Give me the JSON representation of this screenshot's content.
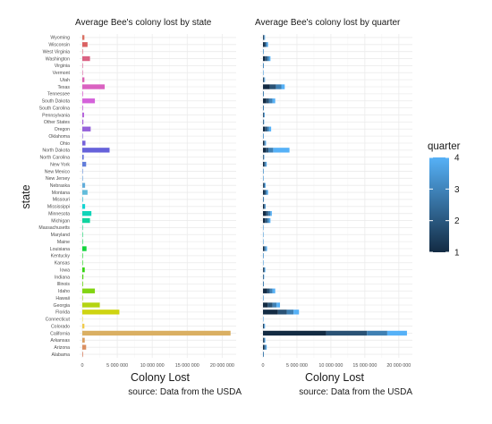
{
  "ylabel": "state",
  "legend": {
    "title": "quarter",
    "ticks": [
      "4",
      "3",
      "2",
      "1"
    ],
    "colors": {
      "low": "#132B43",
      "high": "#56B1F7"
    }
  },
  "chart_data": [
    {
      "type": "bar",
      "orientation": "horizontal",
      "title": "Average Bee's colony lost by state",
      "xlabel": "Colony Lost",
      "caption": "source: Data from the USDA",
      "xlim": [
        0,
        22000000
      ],
      "xticks": [
        "0",
        "5 000 000",
        "10 000 000",
        "15 000 000",
        "20 000 000"
      ],
      "fill": "by state (hue)",
      "categories": [
        "Alabama",
        "Arizona",
        "Arkansas",
        "California",
        "Colorado",
        "Connecticut",
        "Florida",
        "Georgia",
        "Hawaii",
        "Idaho",
        "Illinois",
        "Indiana",
        "Iowa",
        "Kansas",
        "Kentucky",
        "Louisiana",
        "Maine",
        "Maryland",
        "Massachusetts",
        "Michigan",
        "Minnesota",
        "Mississippi",
        "Missouri",
        "Montana",
        "Nebraska",
        "New Jersey",
        "New Mexico",
        "New York",
        "North Carolina",
        "North Dakota",
        "Ohio",
        "Oklahoma",
        "Oregon",
        "Other States",
        "Pennsylvania",
        "South Carolina",
        "South Dakota",
        "Tennessee",
        "Texas",
        "Utah",
        "Vermont",
        "Virginia",
        "Washington",
        "West Virginia",
        "Wisconsin",
        "Wyoming"
      ],
      "values": [
        100000,
        550000,
        350000,
        21200000,
        300000,
        30000,
        5300000,
        2500000,
        40000,
        1800000,
        100000,
        150000,
        350000,
        30000,
        50000,
        600000,
        30000,
        30000,
        30000,
        1100000,
        1300000,
        400000,
        120000,
        750000,
        400000,
        40000,
        50000,
        550000,
        200000,
        3900000,
        450000,
        60000,
        1200000,
        150000,
        250000,
        100000,
        1800000,
        100000,
        3200000,
        300000,
        30000,
        80000,
        1100000,
        50000,
        750000,
        300000
      ]
    },
    {
      "type": "bar",
      "orientation": "horizontal",
      "stacked": true,
      "title": "Average Bee's colony lost by quarter",
      "xlabel": "Colony Lost",
      "caption": "source: Data from the USDA",
      "xlim": [
        0,
        22000000
      ],
      "xticks": [
        "0",
        "5 000 000",
        "10 000 000",
        "15 000 000",
        "20 000 000"
      ],
      "fill": "quarter",
      "series_order": [
        "1",
        "2",
        "3",
        "4"
      ],
      "categories": [
        "Alabama",
        "Arizona",
        "Arkansas",
        "California",
        "Colorado",
        "Connecticut",
        "Florida",
        "Georgia",
        "Hawaii",
        "Idaho",
        "Illinois",
        "Indiana",
        "Iowa",
        "Kansas",
        "Kentucky",
        "Louisiana",
        "Maine",
        "Maryland",
        "Massachusetts",
        "Michigan",
        "Minnesota",
        "Mississippi",
        "Missouri",
        "Montana",
        "Nebraska",
        "New Jersey",
        "New Mexico",
        "New York",
        "North Carolina",
        "North Dakota",
        "Ohio",
        "Oklahoma",
        "Oregon",
        "Other States",
        "Pennsylvania",
        "South Carolina",
        "South Dakota",
        "Tennessee",
        "Texas",
        "Utah",
        "Vermont",
        "Virginia",
        "Washington",
        "West Virginia",
        "Wisconsin",
        "Wyoming"
      ],
      "series": [
        {
          "name": "1",
          "values": [
            30000,
            150000,
            100000,
            9300000,
            60000,
            5000,
            2200000,
            700000,
            10000,
            600000,
            30000,
            40000,
            100000,
            8000,
            15000,
            150000,
            8000,
            8000,
            8000,
            300000,
            400000,
            150000,
            30000,
            200000,
            100000,
            10000,
            15000,
            150000,
            50000,
            400000,
            150000,
            15000,
            300000,
            40000,
            60000,
            30000,
            500000,
            30000,
            1000000,
            80000,
            8000,
            20000,
            300000,
            15000,
            200000,
            80000
          ]
        },
        {
          "name": "2",
          "values": [
            25000,
            150000,
            80000,
            6000000,
            80000,
            8000,
            1300000,
            700000,
            10000,
            400000,
            25000,
            40000,
            80000,
            8000,
            12000,
            150000,
            8000,
            8000,
            8000,
            300000,
            350000,
            100000,
            30000,
            200000,
            100000,
            10000,
            12000,
            150000,
            50000,
            400000,
            100000,
            15000,
            300000,
            40000,
            60000,
            25000,
            400000,
            25000,
            900000,
            80000,
            8000,
            20000,
            300000,
            12000,
            200000,
            80000
          ]
        },
        {
          "name": "3",
          "values": [
            25000,
            150000,
            100000,
            3000000,
            80000,
            8000,
            1000000,
            600000,
            10000,
            400000,
            25000,
            40000,
            100000,
            8000,
            13000,
            150000,
            8000,
            8000,
            8000,
            300000,
            350000,
            100000,
            30000,
            200000,
            100000,
            10000,
            13000,
            150000,
            50000,
            700000,
            100000,
            15000,
            300000,
            40000,
            70000,
            25000,
            500000,
            25000,
            800000,
            70000,
            8000,
            20000,
            300000,
            13000,
            200000,
            70000
          ]
        },
        {
          "name": "4",
          "values": [
            20000,
            100000,
            70000,
            2900000,
            80000,
            9000,
            800000,
            500000,
            10000,
            400000,
            20000,
            30000,
            70000,
            6000,
            10000,
            150000,
            6000,
            6000,
            6000,
            200000,
            200000,
            50000,
            30000,
            150000,
            100000,
            10000,
            10000,
            100000,
            50000,
            2400000,
            100000,
            15000,
            300000,
            30000,
            60000,
            20000,
            400000,
            20000,
            500000,
            70000,
            6000,
            20000,
            200000,
            10000,
            150000,
            70000
          ]
        }
      ]
    }
  ]
}
